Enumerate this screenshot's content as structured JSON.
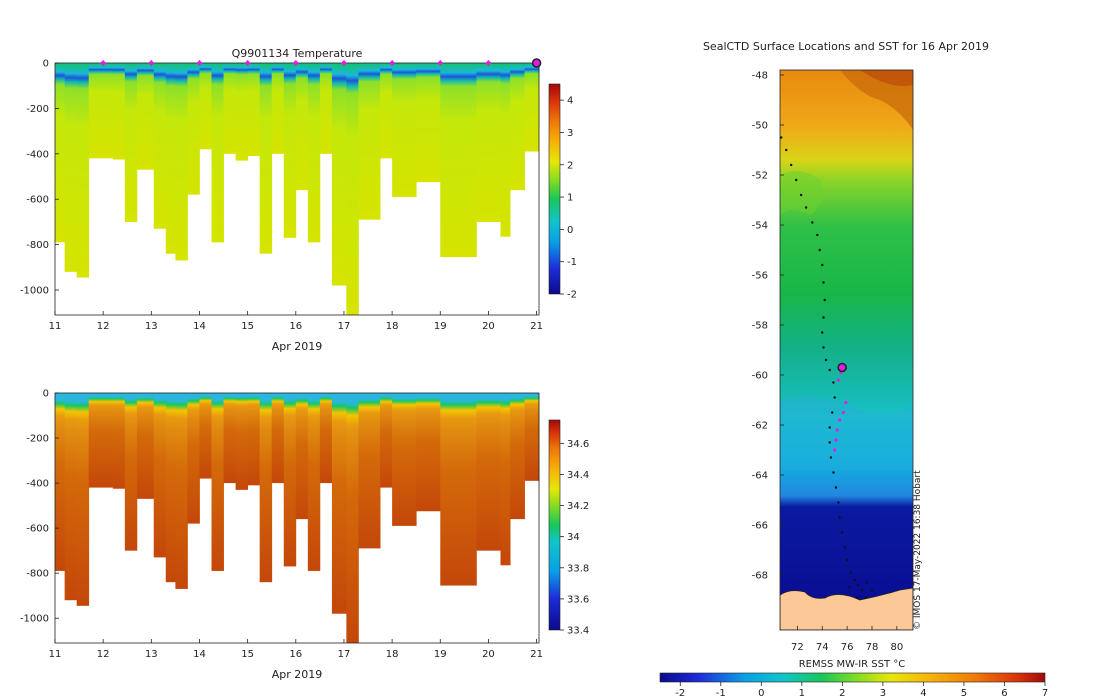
{
  "chart_data": [
    {
      "type": "heatmap",
      "id": "temperature",
      "title": "Q9901134  Temperature",
      "xlabel": "Apr 2019",
      "ylabel": "",
      "xlim": [
        11,
        21.05
      ],
      "ylim": [
        -1110,
        0
      ],
      "xticks": [
        11,
        12,
        13,
        14,
        15,
        16,
        17,
        18,
        19,
        20,
        21
      ],
      "xticklabels": [
        "11",
        "12",
        "13",
        "14",
        "15",
        "16",
        "17",
        "18",
        "19",
        "20",
        "21"
      ],
      "yticks": [
        0,
        -200,
        -400,
        -600,
        -800,
        -1000
      ],
      "yticklabels": [
        "0",
        "-200",
        "-400",
        "-600",
        "-800",
        "-1000"
      ],
      "colorbar": {
        "min": -2,
        "max": 4.5,
        "ticks": [
          4,
          3,
          2,
          1,
          0,
          -1,
          -2
        ],
        "ticklabels": [
          "4",
          "3",
          "2",
          "1",
          "0",
          "-1",
          "-2"
        ]
      },
      "profile_markers": [
        12,
        13,
        14,
        15,
        16,
        17,
        18,
        19,
        20
      ],
      "current_profile": 21,
      "profiles": [
        {
          "x0": 11.0,
          "x1": 11.2,
          "depth": 790
        },
        {
          "x0": 11.2,
          "x1": 11.45,
          "depth": 920
        },
        {
          "x0": 11.45,
          "x1": 11.7,
          "depth": 945
        },
        {
          "x0": 11.7,
          "x1": 12.2,
          "depth": 420
        },
        {
          "x0": 12.2,
          "x1": 12.45,
          "depth": 425
        },
        {
          "x0": 12.45,
          "x1": 12.7,
          "depth": 700
        },
        {
          "x0": 12.7,
          "x1": 13.05,
          "depth": 470
        },
        {
          "x0": 13.05,
          "x1": 13.3,
          "depth": 730
        },
        {
          "x0": 13.3,
          "x1": 13.5,
          "depth": 840
        },
        {
          "x0": 13.5,
          "x1": 13.75,
          "depth": 870
        },
        {
          "x0": 13.75,
          "x1": 14.0,
          "depth": 580
        },
        {
          "x0": 14.0,
          "x1": 14.25,
          "depth": 380
        },
        {
          "x0": 14.25,
          "x1": 14.5,
          "depth": 790
        },
        {
          "x0": 14.5,
          "x1": 14.75,
          "depth": 400
        },
        {
          "x0": 14.75,
          "x1": 15.0,
          "depth": 430
        },
        {
          "x0": 15.0,
          "x1": 15.25,
          "depth": 410
        },
        {
          "x0": 15.25,
          "x1": 15.5,
          "depth": 840
        },
        {
          "x0": 15.5,
          "x1": 15.75,
          "depth": 400
        },
        {
          "x0": 15.75,
          "x1": 16.0,
          "depth": 770
        },
        {
          "x0": 16.0,
          "x1": 16.25,
          "depth": 560
        },
        {
          "x0": 16.25,
          "x1": 16.5,
          "depth": 790
        },
        {
          "x0": 16.5,
          "x1": 16.75,
          "depth": 400
        },
        {
          "x0": 16.75,
          "x1": 17.05,
          "depth": 980
        },
        {
          "x0": 17.05,
          "x1": 17.3,
          "depth": 1110
        },
        {
          "x0": 17.3,
          "x1": 17.75,
          "depth": 690
        },
        {
          "x0": 17.75,
          "x1": 18.0,
          "depth": 420
        },
        {
          "x0": 18.0,
          "x1": 18.5,
          "depth": 590
        },
        {
          "x0": 18.5,
          "x1": 19.0,
          "depth": 525
        },
        {
          "x0": 19.0,
          "x1": 19.75,
          "depth": 855
        },
        {
          "x0": 19.75,
          "x1": 20.25,
          "depth": 700
        },
        {
          "x0": 20.25,
          "x1": 20.45,
          "depth": 765
        },
        {
          "x0": 20.45,
          "x1": 20.75,
          "depth": 560
        },
        {
          "x0": 20.75,
          "x1": 21.05,
          "depth": 390
        }
      ],
      "colors": {
        "surface": "#12c46a",
        "thermocline_a": "#1ab8d8",
        "thermocline_b": "#1d55d8",
        "upper": "#8de02a",
        "lower": "#c4e80a",
        "deep": "#d6e400",
        "marker": "#e11ce8"
      }
    },
    {
      "type": "heatmap",
      "id": "salinity",
      "title": "",
      "xlabel": "Apr 2019",
      "ylabel": "",
      "xlim": [
        11,
        21.05
      ],
      "ylim": [
        -1110,
        0
      ],
      "xticks": [
        11,
        12,
        13,
        14,
        15,
        16,
        17,
        18,
        19,
        20,
        21
      ],
      "xticklabels": [
        "11",
        "12",
        "13",
        "14",
        "15",
        "16",
        "17",
        "18",
        "19",
        "20",
        "21"
      ],
      "yticks": [
        0,
        -200,
        -400,
        -600,
        -800,
        -1000
      ],
      "yticklabels": [
        "0",
        "-200",
        "-400",
        "-600",
        "-800",
        "-1000"
      ],
      "colorbar": {
        "min": 33.4,
        "max": 34.75,
        "ticks": [
          34.6,
          34.4,
          34.2,
          34,
          33.8,
          33.6,
          33.4
        ],
        "ticklabels": [
          "34.6",
          "34.4",
          "34.2",
          "34",
          "33.8",
          "33.6",
          "33.4"
        ]
      },
      "colors": {
        "surface": "#2bb6e0",
        "halocline": "#f2c500",
        "upper": "#e08a10",
        "mid": "#d46a0a",
        "deep": "#c4470a"
      }
    },
    {
      "type": "heatmap",
      "id": "sst_map",
      "title": "SealCTD Surface Locations and SST for 16 Apr 2019",
      "xlabel": "",
      "ylabel": "",
      "xlim": [
        70.6,
        81.3
      ],
      "ylim": [
        -70.2,
        -47.8
      ],
      "xticks": [
        72,
        74,
        76,
        78,
        80
      ],
      "xticklabels": [
        "72",
        "74",
        "76",
        "78",
        "80"
      ],
      "yticks": [
        -48,
        -50,
        -52,
        -54,
        -56,
        -58,
        -60,
        -62,
        -64,
        -66,
        -68
      ],
      "yticklabels": [
        "-48",
        "-50",
        "-52",
        "-54",
        "-56",
        "-58",
        "-60",
        "-62",
        "-64",
        "-66",
        "-68"
      ],
      "colorbar": {
        "label": "REMSS MW-IR SST °C",
        "min": -2.5,
        "max": 7,
        "ticks": [
          -2,
          -1,
          0,
          1,
          2,
          3,
          4,
          5,
          6,
          7
        ],
        "ticklabels": [
          "-2",
          "-1",
          "0",
          "1",
          "2",
          "3",
          "4",
          "5",
          "6",
          "7"
        ]
      },
      "current_position": {
        "lon": 75.6,
        "lat": -59.7
      },
      "track": [
        [
          70.7,
          -50.5
        ],
        [
          71.1,
          -51.0
        ],
        [
          71.5,
          -51.6
        ],
        [
          71.9,
          -52.2
        ],
        [
          72.3,
          -52.8
        ],
        [
          72.7,
          -53.3
        ],
        [
          73.2,
          -53.9
        ],
        [
          73.6,
          -54.4
        ],
        [
          73.8,
          -55.0
        ],
        [
          74.0,
          -55.6
        ],
        [
          74.1,
          -56.3
        ],
        [
          74.2,
          -57.0
        ],
        [
          74.1,
          -57.7
        ],
        [
          74.0,
          -58.3
        ],
        [
          74.1,
          -58.9
        ],
        [
          74.3,
          -59.4
        ],
        [
          74.6,
          -59.8
        ],
        [
          74.9,
          -60.3
        ],
        [
          75.0,
          -60.9
        ],
        [
          74.8,
          -61.5
        ],
        [
          74.6,
          -62.1
        ],
        [
          74.6,
          -62.7
        ],
        [
          74.7,
          -63.3
        ],
        [
          74.9,
          -63.9
        ],
        [
          75.1,
          -64.5
        ],
        [
          75.3,
          -65.1
        ],
        [
          75.4,
          -65.7
        ],
        [
          75.6,
          -66.3
        ],
        [
          75.8,
          -66.9
        ],
        [
          76.0,
          -67.4
        ],
        [
          76.3,
          -67.9
        ],
        [
          76.6,
          -68.2
        ],
        [
          76.9,
          -68.4
        ],
        [
          77.2,
          -68.6
        ],
        [
          77.6,
          -68.3
        ],
        [
          78.0,
          -68.6
        ],
        [
          77.5,
          -68.9
        ],
        [
          76.8,
          -68.9
        ],
        [
          76.2,
          -68.5
        ]
      ],
      "recent_track": [
        [
          75.9,
          -61.1
        ],
        [
          75.7,
          -61.5
        ],
        [
          75.4,
          -61.8
        ],
        [
          75.2,
          -62.2
        ],
        [
          75.1,
          -62.6
        ],
        [
          75.0,
          -63.0
        ],
        [
          75.3,
          -60.2
        ],
        [
          75.5,
          -59.9
        ]
      ],
      "land_label": "",
      "credit": "© IMOS 17-May-2022 16:38 Hobart"
    }
  ]
}
